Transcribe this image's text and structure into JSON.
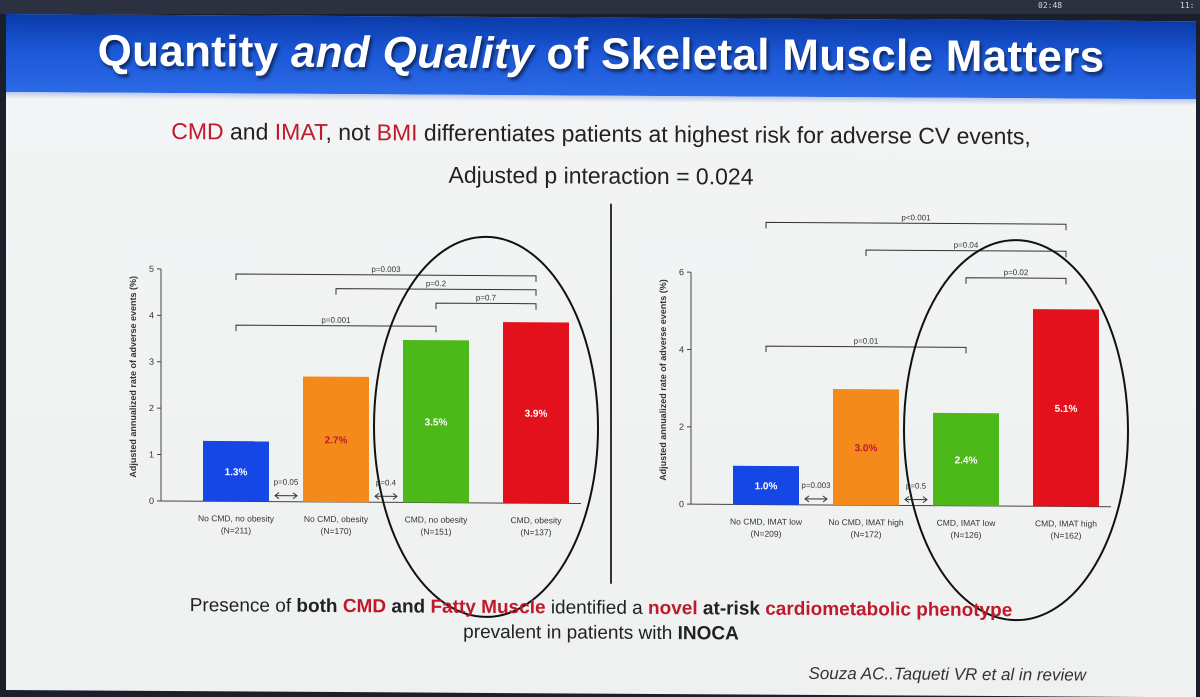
{
  "status_bar": {
    "time_left": "02:48",
    "time_right": "11:"
  },
  "slide": {
    "title_part1": "Quantity ",
    "title_part2": "and Quality",
    "title_part3": " of Skeletal Muscle Matters",
    "subtitle_line1": {
      "cmd": "CMD",
      "and": " and ",
      "imat": "IMAT",
      "not": ", not ",
      "bmi": "BMI",
      "rest": " differentiates patients at highest risk for adverse CV events,"
    },
    "subtitle_line2": "Adjusted p interaction = 0.024",
    "footer_line1": {
      "t1": "Presence of ",
      "t2": "both ",
      "t3": "CMD",
      "t4": " and ",
      "t5": "Fatty Muscle",
      "t6": " identified a ",
      "t7": "novel",
      "t8": " at-risk ",
      "t9": "cardiometabolic phenotype"
    },
    "footer_line2": {
      "t1": "prevalent in patients with ",
      "t2": "INOCA"
    },
    "citation": "Souza AC..Taqueti VR et al in review"
  },
  "colors": {
    "blue": "#1447e6",
    "orange": "#f58a1c",
    "green": "#4cb81a",
    "red": "#e3111c",
    "accent_red": "#c0192b"
  },
  "chart_data": [
    {
      "type": "bar",
      "title": "",
      "ylabel": "Adjusted annualized rate of adverse events (%)",
      "xlabel": "",
      "ylim": [
        0,
        5
      ],
      "yticks": [
        0,
        1,
        2,
        3,
        4,
        5
      ],
      "categories": [
        {
          "name": "No CMD, no obesity",
          "n": "(N=211)"
        },
        {
          "name": "No CMD, obesity",
          "n": "(N=170)"
        },
        {
          "name": "CMD, no obesity",
          "n": "(N=151)"
        },
        {
          "name": "CMD, obesity",
          "n": "(N=137)"
        }
      ],
      "values": [
        1.3,
        2.7,
        3.5,
        3.9
      ],
      "data_labels": [
        "1.3%",
        "2.7%",
        "3.5%",
        "3.9%"
      ],
      "bar_colors": [
        "#1447e6",
        "#f58a1c",
        "#4cb81a",
        "#e3111c"
      ],
      "label_colors": [
        "#ffffff",
        "#c0192b",
        "#ffffff",
        "#ffffff"
      ],
      "pairwise_between_adjacent": [
        {
          "from": 0,
          "to": 1,
          "label": "p=0.05"
        },
        {
          "from": 1,
          "to": 2,
          "label": "p=0.4"
        }
      ],
      "comparison_brackets": [
        {
          "from": 0,
          "to": 3,
          "label": "p=0.003",
          "level": 4.9
        },
        {
          "from": 1,
          "to": 3,
          "label": "p=0.2",
          "level": 4.6
        },
        {
          "from": 2,
          "to": 3,
          "label": "p=0.7",
          "level": 4.3
        },
        {
          "from": 0,
          "to": 2,
          "label": "p=0.001",
          "level": 3.8
        }
      ],
      "highlight": "ellipse around CMD groups"
    },
    {
      "type": "bar",
      "title": "",
      "ylabel": "Adjusted annualized rate of adverse events (%)",
      "xlabel": "",
      "ylim": [
        0,
        6
      ],
      "yticks": [
        0,
        2,
        4,
        6
      ],
      "categories": [
        {
          "name": "No CMD, IMAT low",
          "n": "(N=209)"
        },
        {
          "name": "No CMD, IMAT high",
          "n": "(N=172)"
        },
        {
          "name": "CMD, IMAT low",
          "n": "(N=126)"
        },
        {
          "name": "CMD, IMAT high",
          "n": "(N=162)"
        }
      ],
      "values": [
        1.0,
        3.0,
        2.4,
        5.1
      ],
      "data_labels": [
        "1.0%",
        "3.0%",
        "2.4%",
        "5.1%"
      ],
      "bar_colors": [
        "#1447e6",
        "#f58a1c",
        "#4cb81a",
        "#e3111c"
      ],
      "label_colors": [
        "#ffffff",
        "#c0192b",
        "#ffffff",
        "#ffffff"
      ],
      "pairwise_between_adjacent": [
        {
          "from": 0,
          "to": 1,
          "label": "p=0.003"
        },
        {
          "from": 1,
          "to": 2,
          "label": "p=0.5"
        }
      ],
      "comparison_brackets": [
        {
          "from": 0,
          "to": 3,
          "label": "p<0.001",
          "level": 7.3
        },
        {
          "from": 1,
          "to": 3,
          "label": "p=0.04",
          "level": 6.6
        },
        {
          "from": 2,
          "to": 3,
          "label": "p=0.02",
          "level": 5.9
        },
        {
          "from": 0,
          "to": 2,
          "label": "p=0.01",
          "level": 4.1
        }
      ],
      "highlight": "ellipse around CMD groups"
    }
  ]
}
